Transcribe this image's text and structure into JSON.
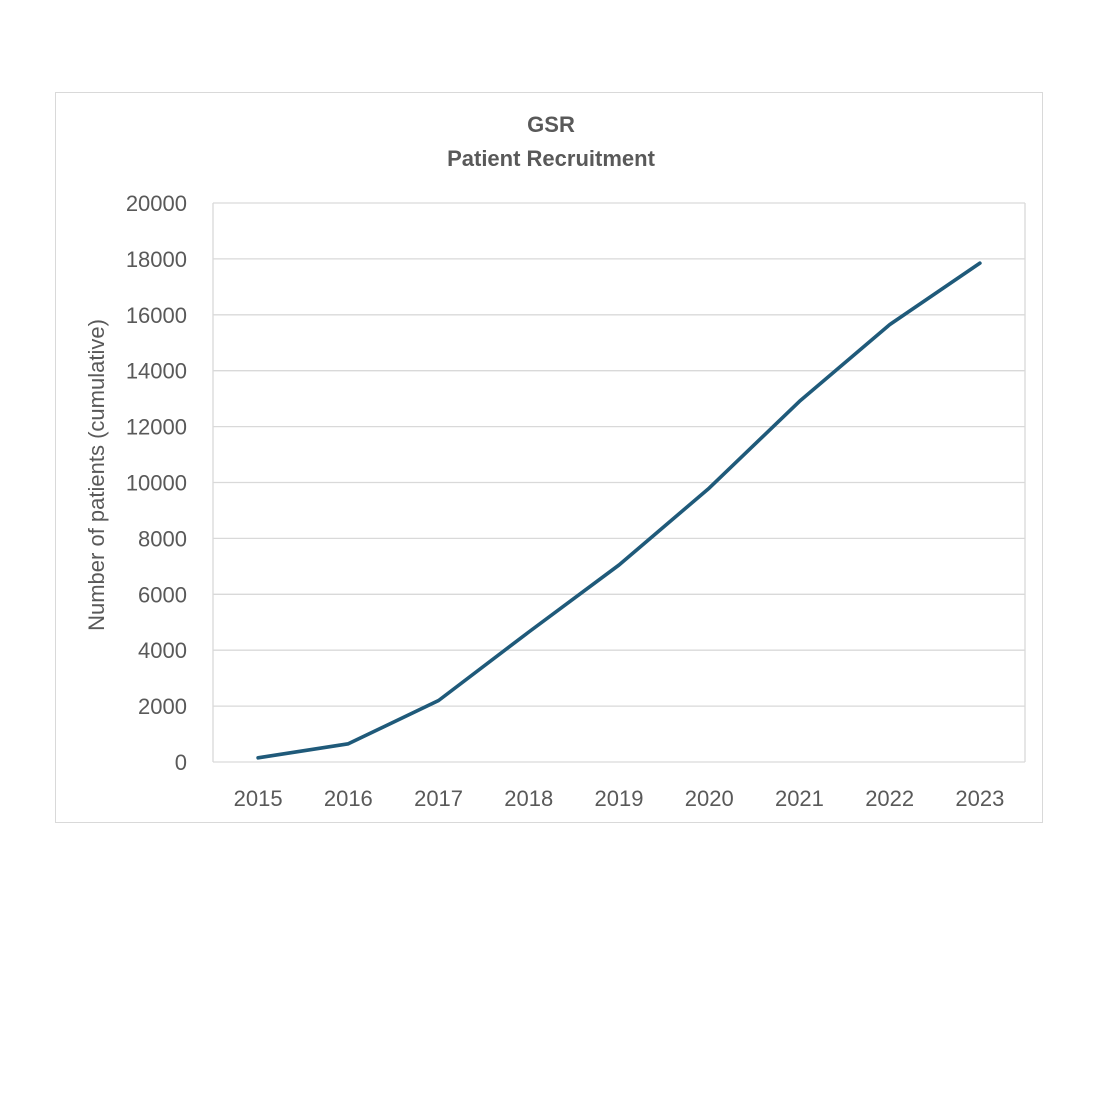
{
  "chart_data": {
    "type": "line",
    "title": "GSR",
    "subtitle": "Patient Recruitment",
    "xlabel": "",
    "ylabel": "Number of patients (cumulative)",
    "ylim": [
      0,
      20000
    ],
    "y_ticks": [
      "0",
      "2000",
      "4000",
      "6000",
      "8000",
      "10000",
      "12000",
      "14000",
      "16000",
      "18000",
      "20000"
    ],
    "categories": [
      "2015",
      "2016",
      "2017",
      "2018",
      "2019",
      "2020",
      "2021",
      "2022",
      "2023"
    ],
    "series": [
      {
        "values": [
          150,
          650,
          2200,
          4650,
          7050,
          9800,
          12900,
          15650,
          17850
        ],
        "color": "#1f5a7a"
      }
    ],
    "grid": true,
    "legend": "none"
  }
}
